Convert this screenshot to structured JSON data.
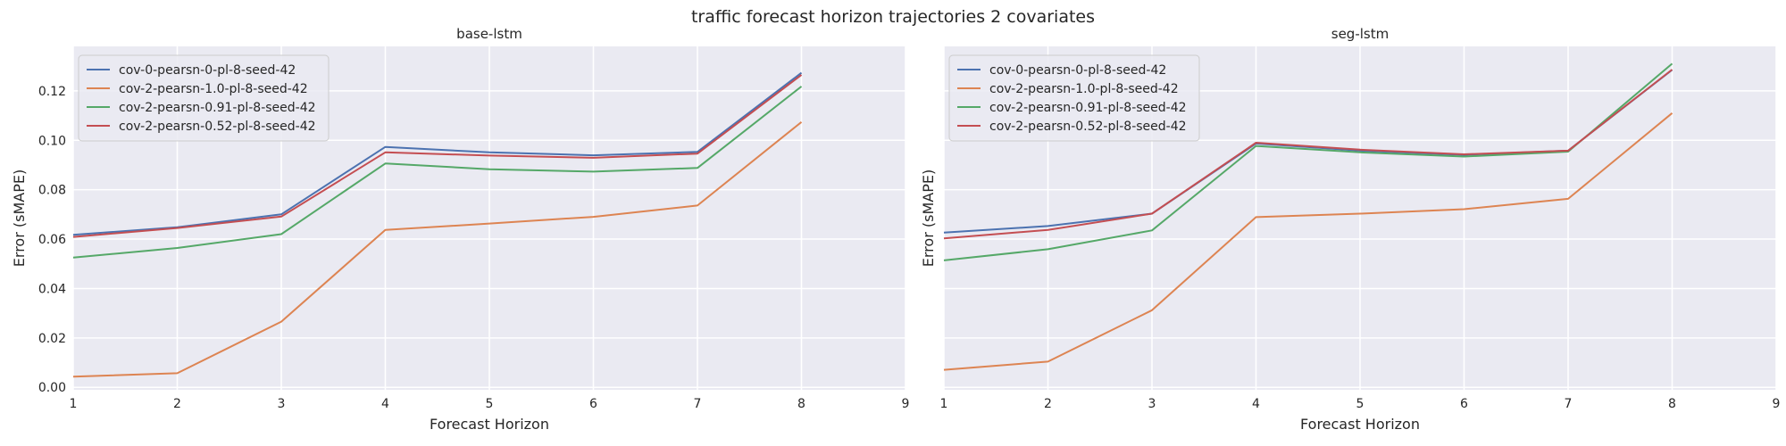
{
  "figure": {
    "title": "traffic forecast horizon trajectories 2 covariates"
  },
  "chart_data": [
    {
      "type": "line",
      "title": "base-lstm",
      "xlabel": "Forecast Horizon",
      "ylabel": "Error (sMAPE)",
      "xlim": [
        1,
        9
      ],
      "ylim": [
        -0.001,
        0.138
      ],
      "xticks": [
        "1",
        "2",
        "3",
        "4",
        "5",
        "6",
        "7",
        "8",
        "9"
      ],
      "yticks": [
        "0.00",
        "0.02",
        "0.04",
        "0.06",
        "0.08",
        "0.10",
        "0.12"
      ],
      "grid": true,
      "legend": "upper-left",
      "x": [
        1,
        2,
        3,
        4,
        5,
        6,
        7,
        8
      ],
      "series": [
        {
          "name": "cov-0-pearsn-0-pl-8-seed-42",
          "color": "#4c72b0",
          "values": [
            0.0617,
            0.0648,
            0.07,
            0.0973,
            0.0951,
            0.0939,
            0.0953,
            0.1273
          ]
        },
        {
          "name": "cov-2-pearsn-1.0-pl-8-seed-42",
          "color": "#dd8452",
          "values": [
            0.0043,
            0.0057,
            0.0266,
            0.0637,
            0.0663,
            0.069,
            0.0736,
            0.1074
          ]
        },
        {
          "name": "cov-2-pearsn-0.91-pl-8-seed-42",
          "color": "#55a868",
          "values": [
            0.0525,
            0.0564,
            0.062,
            0.0906,
            0.0883,
            0.0873,
            0.0888,
            0.1218
          ]
        },
        {
          "name": "cov-2-pearsn-0.52-pl-8-seed-42",
          "color": "#c44e52",
          "values": [
            0.0609,
            0.0645,
            0.0691,
            0.0951,
            0.0938,
            0.0929,
            0.0946,
            0.1265
          ]
        }
      ]
    },
    {
      "type": "line",
      "title": "seg-lstm",
      "xlabel": "Forecast Horizon",
      "ylabel": "Error (sMAPE)",
      "xlim": [
        1,
        9
      ],
      "ylim": [
        -0.001,
        0.138
      ],
      "xticks": [
        "1",
        "2",
        "3",
        "4",
        "5",
        "6",
        "7",
        "8",
        "9"
      ],
      "yticks": [],
      "grid": true,
      "legend": "upper-left",
      "x": [
        1,
        2,
        3,
        4,
        5,
        6,
        7,
        8
      ],
      "series": [
        {
          "name": "cov-0-pearsn-0-pl-8-seed-42",
          "color": "#4c72b0",
          "values": [
            0.0626,
            0.0653,
            0.0703,
            0.0987,
            0.0958,
            0.0941,
            0.0958,
            0.1285
          ]
        },
        {
          "name": "cov-2-pearsn-1.0-pl-8-seed-42",
          "color": "#dd8452",
          "values": [
            0.0071,
            0.0104,
            0.0312,
            0.0689,
            0.0703,
            0.0721,
            0.0763,
            0.111
          ]
        },
        {
          "name": "cov-2-pearsn-0.91-pl-8-seed-42",
          "color": "#55a868",
          "values": [
            0.0514,
            0.0559,
            0.0635,
            0.0977,
            0.0951,
            0.0934,
            0.0954,
            0.131
          ]
        },
        {
          "name": "cov-2-pearsn-0.52-pl-8-seed-42",
          "color": "#c44e52",
          "values": [
            0.0603,
            0.0637,
            0.0703,
            0.099,
            0.0962,
            0.0943,
            0.0958,
            0.1286
          ]
        }
      ]
    }
  ]
}
